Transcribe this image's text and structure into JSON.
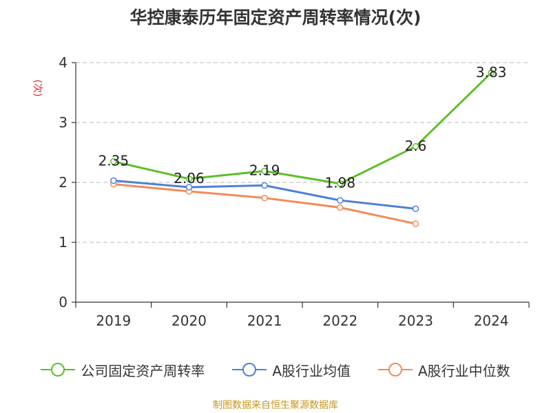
{
  "title": "华控康泰历年固定资产周转率情况(次)",
  "source": "制图数据来自恒生聚源数据库",
  "colors": {
    "series_0": "#5cbf27",
    "series_1": "#4e7fd9",
    "series_2": "#f28b59",
    "grid": "#c8c8c8",
    "axis": "#333333",
    "ylabel": "#e02020"
  },
  "chart_data": {
    "type": "line",
    "title": "华控康泰历年固定资产周转率情况(次)",
    "xlabel": "",
    "ylabel": "(次)",
    "categories": [
      "2019",
      "2020",
      "2021",
      "2022",
      "2023",
      "2024"
    ],
    "ylim": [
      0,
      4
    ],
    "yticks": [
      0,
      1,
      2,
      3,
      4
    ],
    "grid": true,
    "legend_position": "bottom",
    "series": [
      {
        "name": "公司固定资产周转率",
        "values": [
          2.35,
          2.06,
          2.19,
          1.98,
          2.6,
          3.83
        ],
        "labels": [
          "2.35",
          "2.06",
          "2.19",
          "1.98",
          "2.6",
          "3.83"
        ]
      },
      {
        "name": "A股行业均值",
        "values": [
          2.03,
          1.92,
          1.95,
          1.7,
          1.56,
          null
        ]
      },
      {
        "name": "A股行业中位数",
        "values": [
          1.97,
          1.85,
          1.74,
          1.58,
          1.31,
          null
        ]
      }
    ]
  }
}
